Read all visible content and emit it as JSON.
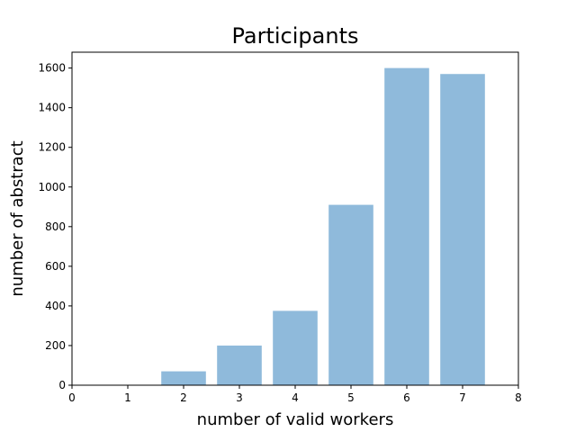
{
  "chart_data": {
    "type": "bar",
    "title": "Participants",
    "xlabel": "number of valid workers",
    "ylabel": "number of abstract",
    "x": [
      1,
      2,
      3,
      4,
      5,
      6,
      7
    ],
    "values": [
      0,
      70,
      200,
      375,
      910,
      1600,
      1570
    ],
    "xlim": [
      0,
      8
    ],
    "ylim": [
      0,
      1680
    ],
    "xticks": [
      0,
      1,
      2,
      3,
      4,
      5,
      6,
      7,
      8
    ],
    "yticks": [
      0,
      200,
      400,
      600,
      800,
      1000,
      1200,
      1400,
      1600
    ],
    "bar_color": "#8fbadb",
    "grid": false
  }
}
